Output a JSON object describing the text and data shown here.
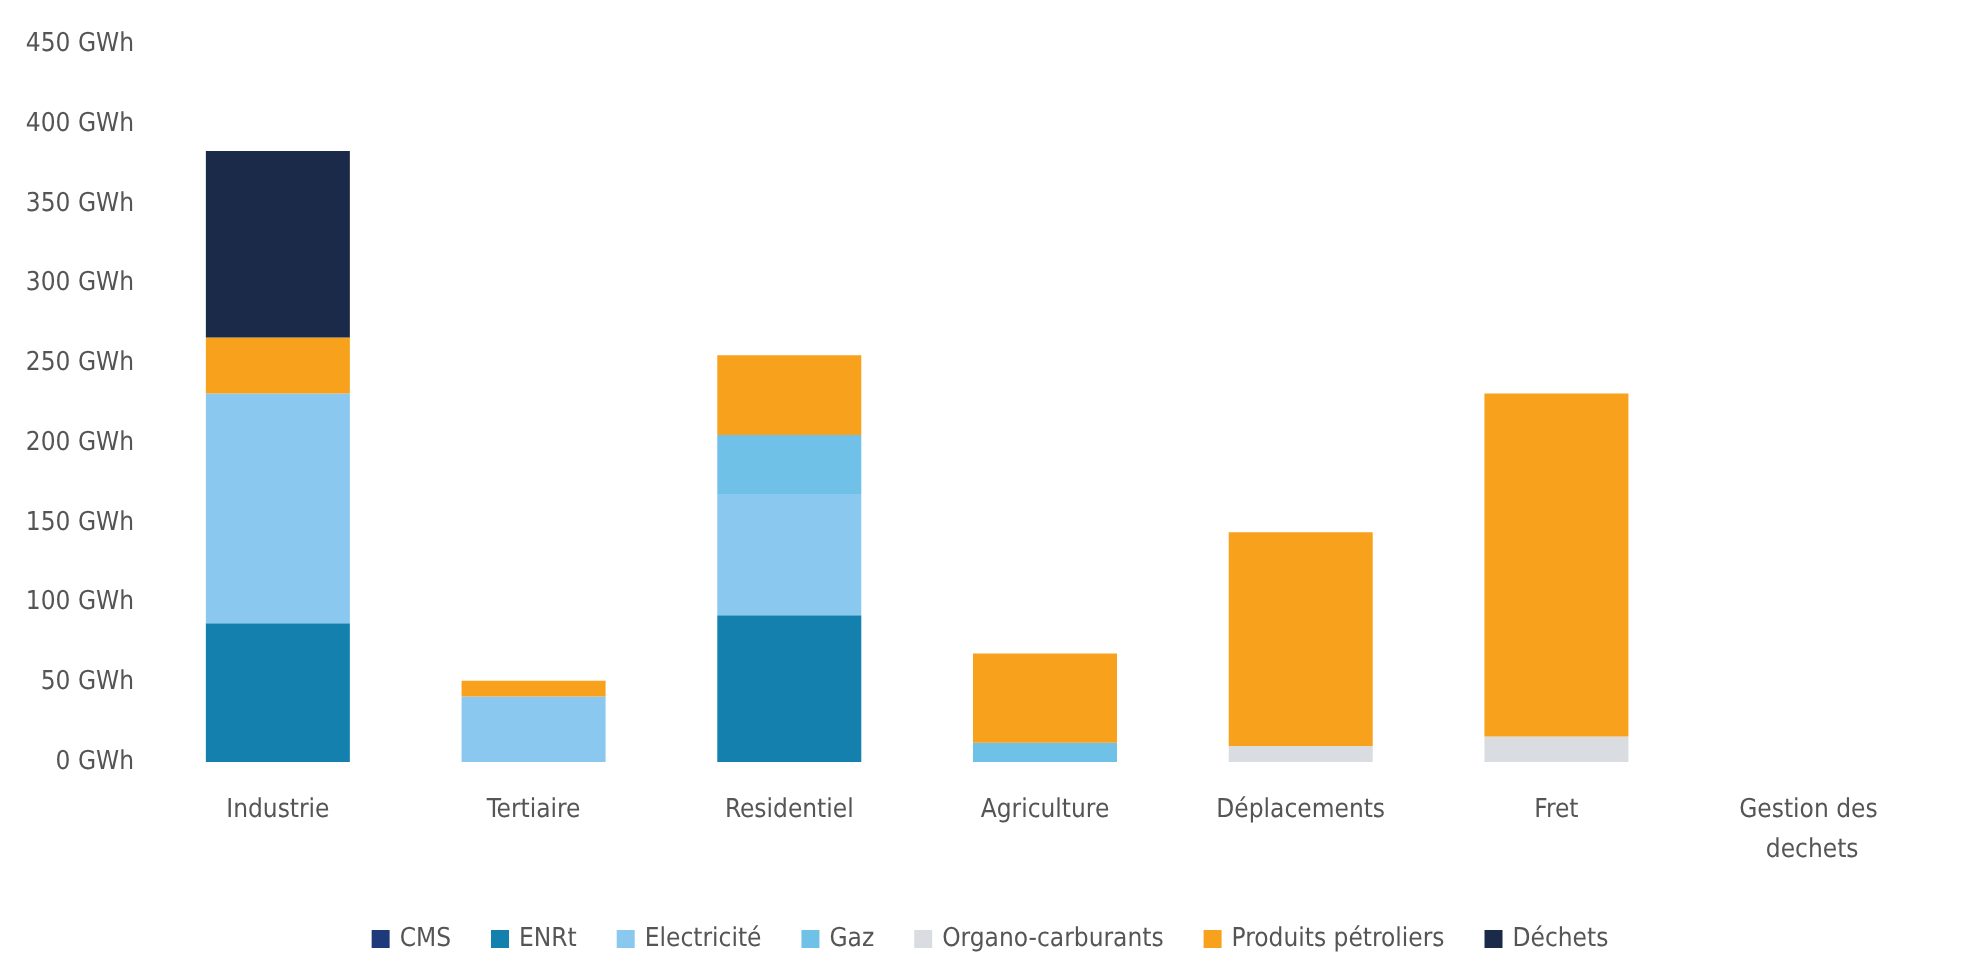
{
  "chart_data": {
    "type": "bar",
    "stacked": true,
    "categories": [
      "Industrie",
      "Tertiaire",
      "Residentiel",
      "Agriculture",
      "Déplacements",
      "Fret",
      "Gestion des dechets"
    ],
    "series": [
      {
        "name": "CMS",
        "color": "#1f3a7a",
        "values": [
          null,
          null,
          null,
          null,
          null,
          null,
          null
        ]
      },
      {
        "name": "ENRt",
        "color": "#1380ae",
        "values": [
          87,
          null,
          92,
          null,
          null,
          null,
          null
        ]
      },
      {
        "name": "Electricité",
        "color": "#8ac8ef",
        "values": [
          144,
          41,
          76,
          null,
          null,
          null,
          null
        ]
      },
      {
        "name": "Gaz",
        "color": "#70c1e8",
        "values": [
          null,
          null,
          37,
          12,
          null,
          null,
          null
        ]
      },
      {
        "name": "Organo-carburants",
        "color": "#d9dde2",
        "values": [
          null,
          null,
          null,
          null,
          10,
          16,
          null
        ]
      },
      {
        "name": "Produits pétroliers",
        "color": "#f8a11c",
        "values": [
          35,
          10,
          50,
          56,
          134,
          215,
          null
        ]
      },
      {
        "name": "Déchets",
        "color": "#1b2a48",
        "values": [
          117,
          null,
          null,
          null,
          null,
          null,
          null
        ]
      }
    ],
    "ylim": [
      0,
      450
    ],
    "yticks": [
      {
        "value": 0,
        "label": "0 GWh"
      },
      {
        "value": 50,
        "label": "50 GWh"
      },
      {
        "value": 100,
        "label": "100 GWh"
      },
      {
        "value": 150,
        "label": "150 GWh"
      },
      {
        "value": 200,
        "label": "200 GWh"
      },
      {
        "value": 250,
        "label": "250 GWh"
      },
      {
        "value": 300,
        "label": "300 GWh"
      },
      {
        "value": 350,
        "label": "350 GWh"
      },
      {
        "value": 400,
        "label": "400 GWh"
      },
      {
        "value": 450,
        "label": "450 GWh"
      }
    ],
    "grid": false,
    "legend": "bottom"
  }
}
